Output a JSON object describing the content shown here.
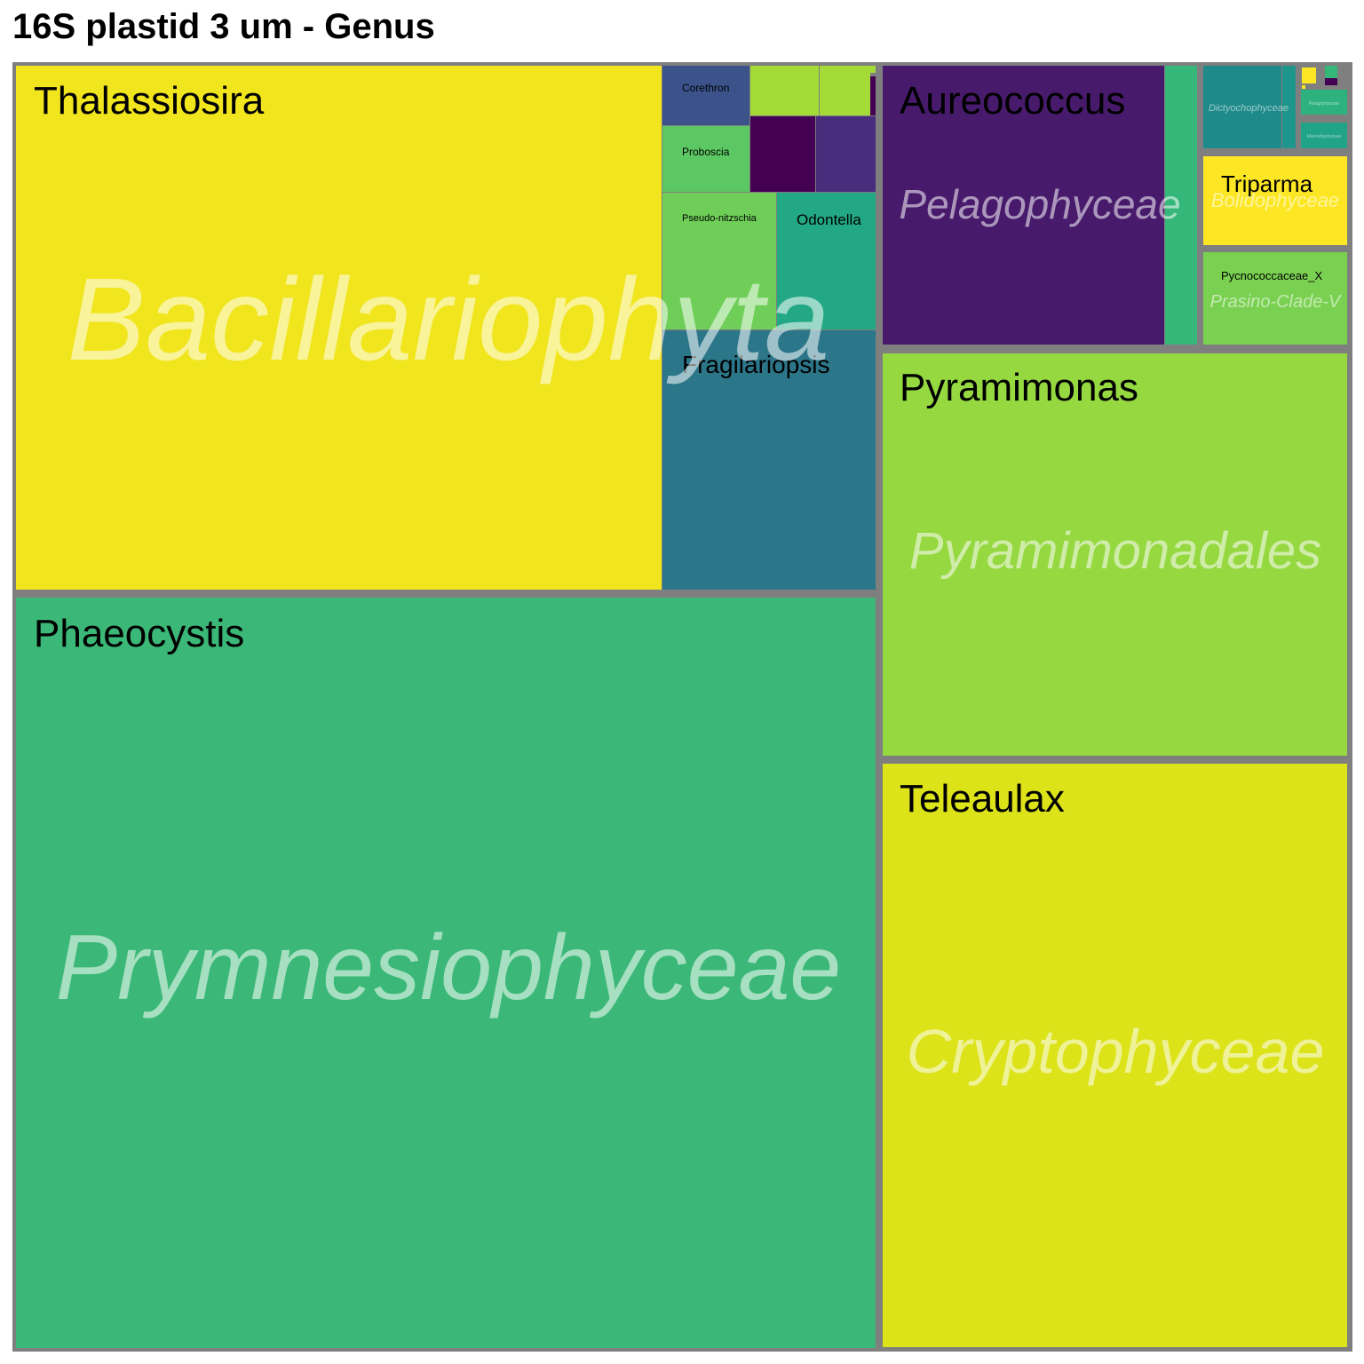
{
  "title": "16S plastid 3 um - Genus",
  "chart_data": {
    "type": "treemap",
    "title": "16S plastid 3 um - Genus",
    "groups": [
      {
        "name": "Prymnesiophyceae",
        "genera": [
          {
            "name": "Phaeocystis",
            "color": "#3bb877"
          }
        ]
      },
      {
        "name": "Bacillariophyta",
        "genera": [
          {
            "name": "Thalassiosira",
            "color": "#f1e51d"
          },
          {
            "name": "Fragilariopsis",
            "color": "#2c768a"
          },
          {
            "name": "Pseudo-nitzschia",
            "color": "#6ece58"
          },
          {
            "name": "Odontella",
            "color": "#22a884"
          },
          {
            "name": "Proboscia",
            "color": "#5cc863"
          },
          {
            "name": "Corethron",
            "color": "#3b528b"
          },
          {
            "name": "",
            "color": "#440154"
          },
          {
            "name": "",
            "color": "#472d7b"
          },
          {
            "name": "",
            "color": "#a5db36"
          },
          {
            "name": "",
            "color": "#a5db36"
          }
        ]
      },
      {
        "name": "Cryptophyceae",
        "genera": [
          {
            "name": "Teleaulax",
            "color": "#dce319"
          }
        ]
      },
      {
        "name": "Pyramimonadales",
        "genera": [
          {
            "name": "Pyramimonas",
            "color": "#95d840"
          }
        ]
      },
      {
        "name": "Pelagophyceae",
        "genera": [
          {
            "name": "Aureococcus",
            "color": "#481a6c"
          },
          {
            "name": "",
            "color": "#35b779"
          }
        ]
      },
      {
        "name": "Bolidophyceae",
        "genera": [
          {
            "name": "Triparma",
            "color": "#fde725"
          }
        ]
      },
      {
        "name": "Prasino-Clade-V",
        "genera": [
          {
            "name": "Pycnococcaceae_X",
            "color": "#7ad151"
          }
        ]
      },
      {
        "name": "Dictyochophyceae",
        "genera": [
          {
            "name": "",
            "color": "#1f8a8a"
          },
          {
            "name": "",
            "color": "#1f968b"
          }
        ]
      },
      {
        "name": "Pelagophyceae",
        "genera": [
          {
            "name": "",
            "color": "#2db27d"
          }
        ]
      },
      {
        "name": "Mamiellophyceae",
        "genera": [
          {
            "name": "",
            "color": "#20a386"
          }
        ]
      }
    ]
  }
}
